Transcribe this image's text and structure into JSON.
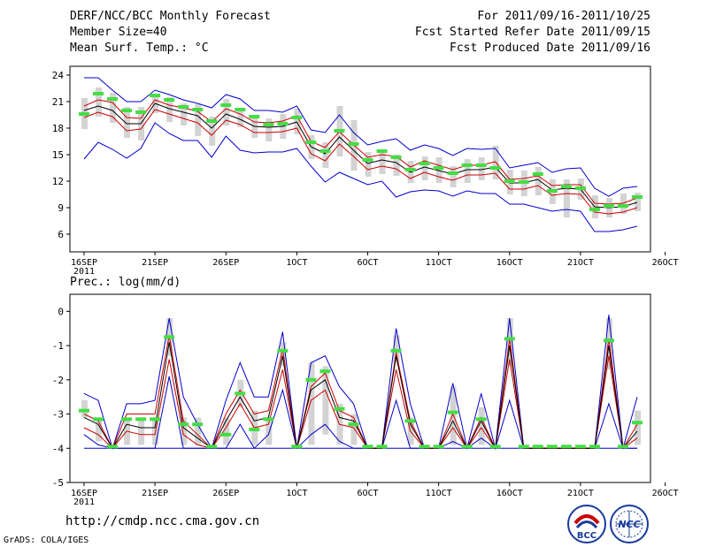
{
  "header": {
    "left": [
      "DERF/NCC/BCC Monthly Forecast",
      "Member Size=40",
      "Mean Surf. Temp.: °C"
    ],
    "right": [
      "For 2011/09/16-2011/10/25",
      "Fcst Started Refer Date 2011/09/15",
      "Fcst Produced Date 2011/09/16"
    ]
  },
  "footer": {
    "url": "http://cmdp.ncc.cma.gov.cn",
    "grads": "GrADS: COLA/IGES",
    "logo1_text": "BCC",
    "logo2_text": "NCC"
  },
  "colors": {
    "mean": "#000000",
    "envelope": "#0000cc",
    "spread": "#cc0000",
    "box": "#d3d3d3",
    "marker": "#44dd44"
  },
  "chart_data": [
    {
      "type": "line",
      "title": "Mean Surf. Temp.: °C",
      "ylim": [
        4,
        25
      ],
      "yticks": [
        "24",
        "21",
        "18",
        "15",
        "12",
        "9",
        "6"
      ],
      "ytick_values": [
        24,
        21,
        18,
        15,
        12,
        9,
        6
      ],
      "xticks": [
        "16SEP",
        "21SEP",
        "26SEP",
        "1OCT",
        "6OCT",
        "11OCT",
        "16OCT",
        "21OCT",
        "26OCT"
      ],
      "xsub": "2011",
      "x": [
        16,
        17,
        18,
        19,
        20,
        21,
        22,
        23,
        24,
        25,
        26,
        27,
        28,
        29,
        30,
        31,
        32,
        33,
        34,
        35,
        36,
        37,
        38,
        39,
        40,
        41,
        42,
        43,
        44,
        45,
        46,
        47,
        48,
        49,
        50,
        51,
        52,
        53,
        54,
        55
      ],
      "series": [
        {
          "name": "max",
          "values": [
            23.7,
            23.7,
            22.3,
            21,
            21,
            22.3,
            21.8,
            21.2,
            20.8,
            20.3,
            21.8,
            21.3,
            20,
            20,
            19.8,
            20.5,
            17.8,
            17.5,
            19.5,
            17.5,
            16.1,
            16.5,
            16.8,
            15.5,
            16.1,
            15.7,
            14.9,
            15.7,
            15.6,
            15.7,
            13.5,
            13.8,
            14.1,
            13,
            13.4,
            13.5,
            11.2,
            10.3,
            11.2,
            11.4
          ]
        },
        {
          "name": "upper",
          "values": [
            20.5,
            21.2,
            20.9,
            19.2,
            19.1,
            21.2,
            20.6,
            20.3,
            19.9,
            18.7,
            20.2,
            19.6,
            18.7,
            18.6,
            18.8,
            19.4,
            16.5,
            15.8,
            17.6,
            16.1,
            14.7,
            15,
            14.8,
            13.6,
            14.3,
            13.8,
            13.3,
            13.8,
            13.8,
            14.2,
            12.2,
            12.3,
            12.6,
            11.5,
            11.6,
            11.6,
            9.5,
            9.4,
            9.5,
            10.1
          ]
        },
        {
          "name": "mean",
          "values": [
            20,
            20.5,
            20,
            18.5,
            18.5,
            20.8,
            20.2,
            19.8,
            19.4,
            18,
            19.6,
            19,
            18.2,
            18.1,
            18.2,
            18.7,
            15.9,
            15.1,
            17,
            15.5,
            14,
            14.4,
            14.1,
            13,
            13.6,
            13.2,
            12.8,
            13.3,
            13.3,
            13.6,
            11.8,
            11.8,
            12.2,
            11,
            11.2,
            11.1,
            9.1,
            9,
            9.1,
            9.6
          ]
        },
        {
          "name": "lower",
          "values": [
            19.2,
            19.8,
            19.3,
            17.7,
            17.9,
            20.1,
            19.6,
            19.1,
            18.6,
            17.2,
            18.9,
            18.4,
            17.5,
            17.5,
            17.6,
            18,
            15.1,
            14.3,
            16.2,
            14.8,
            13.3,
            13.7,
            13.4,
            12.3,
            13,
            12.5,
            12.1,
            12.7,
            12.7,
            12.9,
            11.1,
            11.1,
            11.5,
            10.4,
            10.6,
            10.5,
            8.5,
            8.3,
            8.5,
            9
          ]
        },
        {
          "name": "min",
          "values": [
            14.5,
            16.4,
            15.6,
            14.6,
            15.7,
            18.6,
            17.4,
            16.6,
            16.6,
            14.7,
            17.1,
            15.5,
            15.2,
            15.3,
            15.3,
            15.7,
            13.7,
            11.9,
            13,
            12.3,
            11.6,
            12,
            10.2,
            10.8,
            11,
            10.9,
            10.3,
            10.9,
            10.6,
            10.6,
            9.4,
            9.4,
            9,
            8.6,
            8.8,
            8.6,
            6.3,
            6.3,
            6.5,
            6.9
          ]
        },
        {
          "name": "box_high",
          "values": [
            21.4,
            22.6,
            22,
            20.4,
            20.4,
            21.9,
            21.5,
            20.8,
            20.7,
            19.3,
            21.3,
            20.2,
            19.5,
            19.1,
            19.6,
            20.2,
            17.2,
            16.4,
            20.5,
            18.9,
            15.3,
            15.5,
            15,
            14.3,
            14.8,
            14.7,
            13.7,
            14.5,
            14.7,
            16,
            13.3,
            13.2,
            13.6,
            12.2,
            12.2,
            12.3,
            10.4,
            10.1,
            10.6,
            10.7
          ]
        },
        {
          "name": "box_low",
          "values": [
            17.9,
            19.3,
            18.6,
            16.9,
            16.6,
            19.7,
            18.7,
            18.3,
            17.1,
            16,
            18.3,
            18.1,
            16.9,
            16.5,
            16.8,
            17.3,
            14.5,
            13.5,
            14.8,
            13.2,
            12.5,
            12.8,
            12.6,
            11.8,
            12.1,
            11.8,
            11.3,
            11.8,
            12.1,
            12.2,
            10.5,
            10.3,
            10.4,
            9.4,
            7.9,
            9.9,
            7.8,
            7.9,
            8.3,
            8.6
          ]
        },
        {
          "name": "obs_marker",
          "values": [
            19.6,
            21.9,
            21.3,
            20,
            19.8,
            21.7,
            21.2,
            20.4,
            20.1,
            18.8,
            20.6,
            20.1,
            19.3,
            18.4,
            18.5,
            19.2,
            16.4,
            15.4,
            17.7,
            16.2,
            14.4,
            15.4,
            14.7,
            13.3,
            14,
            13.5,
            12.9,
            13.8,
            13.8,
            13.5,
            12,
            11.9,
            12.8,
            10.9,
            11.4,
            11.2,
            8.8,
            9.2,
            9.2,
            10.2
          ]
        }
      ]
    },
    {
      "type": "line",
      "title": "Prec.: log(mm/d)",
      "ylim": [
        -5,
        0.5
      ],
      "yticks": [
        "0",
        "-1",
        "-2",
        "-3",
        "-4",
        "-5"
      ],
      "ytick_values": [
        0,
        -1,
        -2,
        -3,
        -4,
        -5
      ],
      "xticks": [
        "16SEP",
        "21SEP",
        "26SEP",
        "1OCT",
        "6OCT",
        "11OCT",
        "16OCT",
        "21OCT",
        "26OCT"
      ],
      "xsub": "2011",
      "x": [
        16,
        17,
        18,
        19,
        20,
        21,
        22,
        23,
        24,
        25,
        26,
        27,
        28,
        29,
        30,
        31,
        32,
        33,
        34,
        35,
        36,
        37,
        38,
        39,
        40,
        41,
        42,
        43,
        44,
        45,
        46,
        47,
        48,
        49,
        50,
        51,
        52,
        53,
        54,
        55
      ],
      "baseline": -4,
      "series": [
        {
          "name": "max",
          "values": [
            -2.4,
            -2.6,
            -4,
            -2.7,
            -2.7,
            -2.6,
            -0.2,
            -2.5,
            -3.3,
            -4,
            -2.6,
            -1.5,
            -2.5,
            -2.5,
            -0.6,
            -4,
            -1.5,
            -1.3,
            -2.2,
            -2.7,
            -4,
            -4,
            -0.5,
            -2.7,
            -4,
            -4,
            -2.1,
            -4,
            -2.4,
            -4,
            -0.2,
            -4,
            -4,
            -4,
            -4,
            -4,
            -4,
            -0.1,
            -4,
            -2.5
          ]
        },
        {
          "name": "upper",
          "values": [
            -3,
            -3.2,
            -4,
            -3,
            -3,
            -3,
            -0.7,
            -3.2,
            -3.6,
            -4,
            -3,
            -2.3,
            -3,
            -2.9,
            -1.1,
            -4,
            -2.2,
            -1.8,
            -2.9,
            -3.1,
            -4,
            -4,
            -1.2,
            -3.2,
            -4,
            -4,
            -3,
            -4,
            -3.1,
            -4,
            -0.8,
            -4,
            -4,
            -4,
            -4,
            -4,
            -4,
            -0.8,
            -4,
            -3.3
          ]
        },
        {
          "name": "mean",
          "values": [
            -3.1,
            -3.3,
            -4,
            -3.3,
            -3.4,
            -3.4,
            -0.9,
            -3.4,
            -3.7,
            -4,
            -3.2,
            -2.5,
            -3.2,
            -3.1,
            -1.3,
            -4,
            -2.3,
            -2,
            -3.1,
            -3.2,
            -4,
            -4,
            -1.3,
            -3.3,
            -4,
            -4,
            -3.2,
            -4,
            -3.2,
            -4,
            -1,
            -4,
            -4,
            -4,
            -4,
            -4,
            -4,
            -1,
            -4,
            -3.5
          ]
        },
        {
          "name": "lower",
          "values": [
            -3.4,
            -3.6,
            -4,
            -3.5,
            -3.6,
            -3.6,
            -1.4,
            -3.6,
            -3.9,
            -4,
            -3.4,
            -2.7,
            -3.4,
            -3.3,
            -1.7,
            -4,
            -2.6,
            -2.3,
            -3.3,
            -3.4,
            -4,
            -4,
            -1.7,
            -3.5,
            -4,
            -4,
            -3.4,
            -4,
            -3.4,
            -4,
            -1.4,
            -4,
            -4,
            -4,
            -4,
            -4,
            -4,
            -1.3,
            -4,
            -3.7
          ]
        },
        {
          "name": "min",
          "values": [
            -3.6,
            -3.9,
            -4,
            -4,
            -4,
            -4,
            -1.9,
            -4,
            -4,
            -4,
            -4,
            -3.3,
            -4,
            -3.6,
            -2.3,
            -4,
            -3.6,
            -3.3,
            -3.8,
            -4,
            -4,
            -4,
            -2.6,
            -4,
            -4,
            -4,
            -3.8,
            -4,
            -3.7,
            -4,
            -2.6,
            -4,
            -4,
            -4,
            -4,
            -4,
            -4,
            -2.7,
            -4,
            -4
          ]
        },
        {
          "name": "box_high",
          "values": [
            -2.6,
            -3.1,
            -3.9,
            -3.1,
            -3.1,
            -3.1,
            -0.2,
            -3.1,
            -3.1,
            -3.9,
            -3.1,
            -2,
            -2.9,
            -3.1,
            -0.9,
            -3.9,
            -1.5,
            -1.6,
            -2.7,
            -3,
            -3.9,
            -3.9,
            -0.7,
            -3.1,
            -3.9,
            -3.9,
            -2.2,
            -3.9,
            -2.8,
            -3.9,
            -0.2,
            -3.9,
            -3.9,
            -3.9,
            -3.9,
            -3.9,
            -3.9,
            -0.2,
            -3.9,
            -2.9
          ]
        },
        {
          "name": "box_low",
          "values": [
            -3.1,
            -3.8,
            -4,
            -3.9,
            -3.9,
            -3.9,
            -1.3,
            -3.9,
            -3.9,
            -4,
            -3.9,
            -2.8,
            -3.9,
            -3.9,
            -1.6,
            -4,
            -3.9,
            -3.6,
            -3.9,
            -3.9,
            -4,
            -4,
            -1.5,
            -3.9,
            -4,
            -4,
            -3.9,
            -4,
            -3.9,
            -4,
            -1.6,
            -4,
            -4,
            -4,
            -4,
            -4,
            -4,
            -1.7,
            -4,
            -3.9
          ]
        },
        {
          "name": "obs_marker",
          "values": [
            -2.9,
            -3.15,
            -3.95,
            -3.15,
            -3.15,
            -3.15,
            -0.75,
            -3.3,
            -3.3,
            -3.95,
            -3.6,
            -2.4,
            -3.45,
            -3.15,
            -1.15,
            -3.95,
            -2.0,
            -1.75,
            -2.85,
            -3.3,
            -3.95,
            -3.95,
            -1.15,
            -3.2,
            -3.95,
            -3.95,
            -2.95,
            -3.95,
            -3.15,
            -3.95,
            -0.8,
            -3.95,
            -3.95,
            -3.95,
            -3.95,
            -3.95,
            -3.95,
            -0.85,
            -3.95,
            -3.25
          ]
        }
      ]
    }
  ]
}
